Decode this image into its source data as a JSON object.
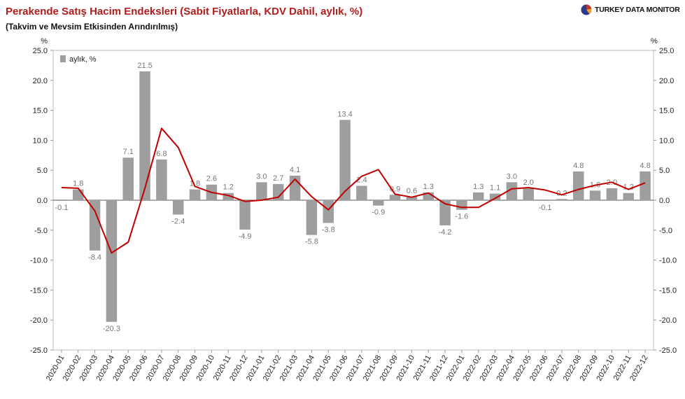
{
  "title": "Perakende Satış Hacim Endeksleri (Sabit Fiyatlarla, KDV Dahil, aylık, %)",
  "subtitle": "(Takvim ve Mevsim Etkisinden Arındırılmış)",
  "brand": "TURKEY DATA MONITOR",
  "colors": {
    "bar": "#9e9e9e",
    "line": "#c00000",
    "title": "#b01c1c"
  },
  "chart_data": {
    "type": "bar",
    "categories": [
      "2020-01",
      "2020-02",
      "2020-03",
      "2020-04",
      "2020-05",
      "2020-06",
      "2020-07",
      "2020-08",
      "2020-09",
      "2020-10",
      "2020-11",
      "2020-12",
      "2021-01",
      "2021-02",
      "2021-03",
      "2021-04",
      "2021-05",
      "2021-06",
      "2021-07",
      "2021-08",
      "2021-09",
      "2021-10",
      "2021-11",
      "2021-12",
      "2022-01",
      "2022-02",
      "2022-03",
      "2022-04",
      "2022-05",
      "2022-06",
      "2022-07",
      "2022-08",
      "2022-09",
      "2022-10",
      "2022-11",
      "2022-12"
    ],
    "series": [
      {
        "name": "aylık, %",
        "type": "bar",
        "values": [
          -0.1,
          1.8,
          -8.4,
          -20.3,
          7.1,
          21.5,
          6.8,
          -2.4,
          1.8,
          2.6,
          1.2,
          -4.9,
          3.0,
          2.7,
          4.1,
          -5.8,
          -3.8,
          13.4,
          2.4,
          -0.9,
          0.9,
          0.6,
          1.3,
          -4.2,
          -1.6,
          1.3,
          1.1,
          3.0,
          2.0,
          -0.1,
          0.2,
          4.8,
          1.6,
          2.0,
          1.2,
          4.8
        ]
      },
      {
        "type": "line",
        "values": [
          2.1,
          2.0,
          -1.8,
          -8.8,
          -7.0,
          2.0,
          12.0,
          8.8,
          2.3,
          1.3,
          0.8,
          -0.2,
          0.0,
          0.5,
          3.5,
          0.6,
          -1.6,
          1.5,
          4.0,
          5.1,
          1.0,
          0.5,
          1.2,
          -0.6,
          -1.2,
          -1.2,
          0.3,
          1.9,
          2.1,
          1.7,
          0.9,
          1.8,
          2.5,
          3.0,
          1.8,
          2.9
        ]
      }
    ],
    "bar_labels": [
      "-0.1",
      "1.8",
      "-8.4",
      "-20.3",
      "7.1",
      "21.5",
      "6.8",
      "-2.4",
      "1.8",
      "2.6",
      "1.2",
      "-4.9",
      "3.0",
      "2.7",
      "4.1",
      "-5.8",
      "-3.8",
      "13.4",
      "2.4",
      "-0.9",
      "0.9",
      "0.6",
      "1.3",
      "-4.2",
      "-1.6",
      "1.3",
      "1.1",
      "3.0",
      "2.0",
      "-0.1",
      "0.2",
      "4.8",
      "1.6",
      "2.0",
      "1.2",
      "4.8"
    ],
    "yticks": [
      "25.0",
      "20.0",
      "15.0",
      "10.0",
      "5.0",
      "0.0",
      "-5.0",
      "-10.0",
      "-15.0",
      "-20.0",
      "-25.0"
    ],
    "ylim": [
      -25,
      25
    ],
    "yunit_left": "%",
    "yunit_right": "%",
    "legend_position": "top-left",
    "grid": false
  }
}
